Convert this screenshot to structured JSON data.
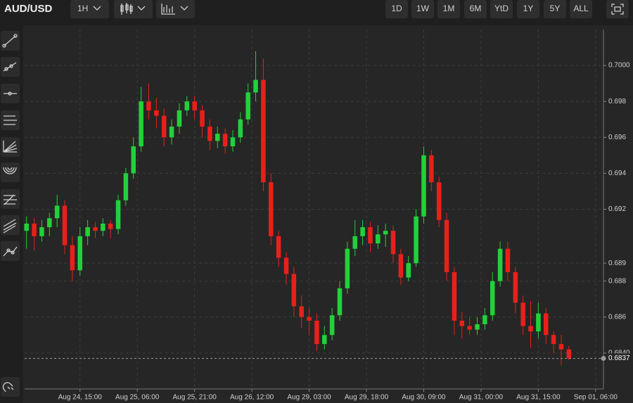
{
  "toolbar": {
    "symbol": "AUD/USD",
    "interval": "1H",
    "ranges": [
      "1D",
      "1W",
      "1M",
      "6M",
      "YtD",
      "1Y",
      "5Y",
      "ALL"
    ]
  },
  "chart_data": {
    "type": "candlestick",
    "x": [
      0,
      2,
      4,
      6,
      8,
      10,
      12,
      14,
      16,
      18,
      20,
      22,
      24,
      26,
      28,
      30,
      32,
      34,
      36,
      38,
      40,
      42,
      44,
      46,
      48,
      50,
      52,
      54,
      56,
      58,
      60,
      62,
      64,
      66,
      68,
      70,
      72,
      74,
      76,
      78,
      80,
      82,
      84,
      86,
      88,
      90,
      92,
      94,
      96,
      98,
      100,
      102,
      104,
      106,
      108,
      110,
      112,
      114,
      116,
      118,
      120,
      122,
      124,
      126,
      128,
      130,
      132,
      134,
      136,
      138,
      140,
      142
    ],
    "open": [
      0.6908,
      0.6912,
      0.6905,
      0.691,
      0.6915,
      0.6922,
      0.69,
      0.6886,
      0.6905,
      0.691,
      0.6908,
      0.6912,
      0.6909,
      0.6925,
      0.694,
      0.6955,
      0.698,
      0.6975,
      0.6972,
      0.696,
      0.6966,
      0.6975,
      0.698,
      0.6975,
      0.6966,
      0.6958,
      0.6962,
      0.6955,
      0.696,
      0.697,
      0.6985,
      0.6992,
      0.6935,
      0.6905,
      0.6893,
      0.6884,
      0.6866,
      0.686,
      0.6858,
      0.6845,
      0.685,
      0.6861,
      0.6876,
      0.6898,
      0.6905,
      0.691,
      0.6901,
      0.6906,
      0.6908,
      0.6895,
      0.6882,
      0.689,
      0.6916,
      0.695,
      0.6935,
      0.6914,
      0.6885,
      0.6858,
      0.6855,
      0.6853,
      0.6856,
      0.6861,
      0.688,
      0.6898,
      0.6885,
      0.6868,
      0.6855,
      0.6852,
      0.6862,
      0.685,
      0.6845,
      0.6842
    ],
    "high": [
      0.6916,
      0.6915,
      0.6914,
      0.6918,
      0.6928,
      0.6925,
      0.6905,
      0.691,
      0.6914,
      0.6913,
      0.6915,
      0.6914,
      0.6928,
      0.6943,
      0.696,
      0.6988,
      0.699,
      0.6982,
      0.6976,
      0.697,
      0.6979,
      0.6983,
      0.6983,
      0.6978,
      0.697,
      0.6966,
      0.6965,
      0.6964,
      0.6974,
      0.699,
      0.7008,
      0.7004,
      0.694,
      0.6908,
      0.6896,
      0.6888,
      0.6872,
      0.6865,
      0.6862,
      0.6855,
      0.6865,
      0.688,
      0.6902,
      0.6914,
      0.6914,
      0.6913,
      0.6911,
      0.6912,
      0.6911,
      0.6898,
      0.6894,
      0.692,
      0.6955,
      0.6953,
      0.6938,
      0.6918,
      0.6888,
      0.6863,
      0.686,
      0.686,
      0.6865,
      0.6885,
      0.6902,
      0.6902,
      0.6888,
      0.6872,
      0.6869,
      0.6868,
      0.6865,
      0.6852,
      0.685,
      0.6844
    ],
    "low": [
      0.6898,
      0.6897,
      0.6902,
      0.6905,
      0.691,
      0.6895,
      0.688,
      0.6883,
      0.69,
      0.6904,
      0.6905,
      0.6904,
      0.6906,
      0.6922,
      0.6937,
      0.6952,
      0.697,
      0.6965,
      0.6955,
      0.6956,
      0.6962,
      0.6972,
      0.697,
      0.696,
      0.6953,
      0.6954,
      0.6951,
      0.6952,
      0.6957,
      0.6967,
      0.698,
      0.693,
      0.69,
      0.6888,
      0.6878,
      0.686,
      0.6854,
      0.685,
      0.6841,
      0.6842,
      0.6847,
      0.6858,
      0.6873,
      0.6894,
      0.69,
      0.6896,
      0.6898,
      0.6899,
      0.689,
      0.6878,
      0.688,
      0.6888,
      0.6912,
      0.693,
      0.691,
      0.688,
      0.685,
      0.6848,
      0.685,
      0.685,
      0.6853,
      0.6858,
      0.6877,
      0.688,
      0.6862,
      0.685,
      0.6843,
      0.6848,
      0.6845,
      0.684,
      0.6833,
      0.6836
    ],
    "close": [
      0.6912,
      0.6905,
      0.691,
      0.6915,
      0.6922,
      0.69,
      0.6886,
      0.6905,
      0.691,
      0.6908,
      0.6912,
      0.6909,
      0.6925,
      0.694,
      0.6955,
      0.698,
      0.6975,
      0.6972,
      0.696,
      0.6966,
      0.6975,
      0.698,
      0.6975,
      0.6966,
      0.6958,
      0.6962,
      0.6955,
      0.696,
      0.697,
      0.6985,
      0.6992,
      0.6935,
      0.6905,
      0.6893,
      0.6884,
      0.6866,
      0.686,
      0.6858,
      0.6845,
      0.685,
      0.6861,
      0.6876,
      0.6898,
      0.6905,
      0.691,
      0.6901,
      0.6906,
      0.6908,
      0.6895,
      0.6882,
      0.689,
      0.6916,
      0.695,
      0.6935,
      0.6914,
      0.6885,
      0.6858,
      0.6855,
      0.6853,
      0.6856,
      0.6861,
      0.688,
      0.6898,
      0.6885,
      0.6868,
      0.6855,
      0.6852,
      0.6862,
      0.685,
      0.6845,
      0.6842,
      0.6837
    ],
    "up_color": "#22d13a",
    "down_color": "#e8201a",
    "last_price": 0.6837,
    "xlim": [
      -0.5,
      150.5
    ],
    "xticks": [
      {
        "value": 14,
        "label": "Aug 24, 15:00"
      },
      {
        "value": 29,
        "label": "Aug 25, 06:00"
      },
      {
        "value": 44,
        "label": "Aug 25, 21:00"
      },
      {
        "value": 59,
        "label": "Aug 26, 12:00"
      },
      {
        "value": 74,
        "label": "Aug 29, 03:00"
      },
      {
        "value": 89,
        "label": "Aug 29, 18:00"
      },
      {
        "value": 104,
        "label": "Aug 30, 09:00"
      },
      {
        "value": 119,
        "label": "Aug 31, 00:00"
      },
      {
        "value": 134,
        "label": "Aug 31, 15:00"
      },
      {
        "value": 149,
        "label": "Sep 01, 06:00"
      }
    ],
    "ylim": [
      0.682,
      0.702
    ],
    "yticks": [
      {
        "value": 0.684,
        "label": "0.6840"
      },
      0.686,
      0.688,
      0.689,
      0.692,
      0.694,
      0.696,
      0.698,
      {
        "value": 0.7,
        "label": "0.7000"
      }
    ],
    "grid": true
  }
}
